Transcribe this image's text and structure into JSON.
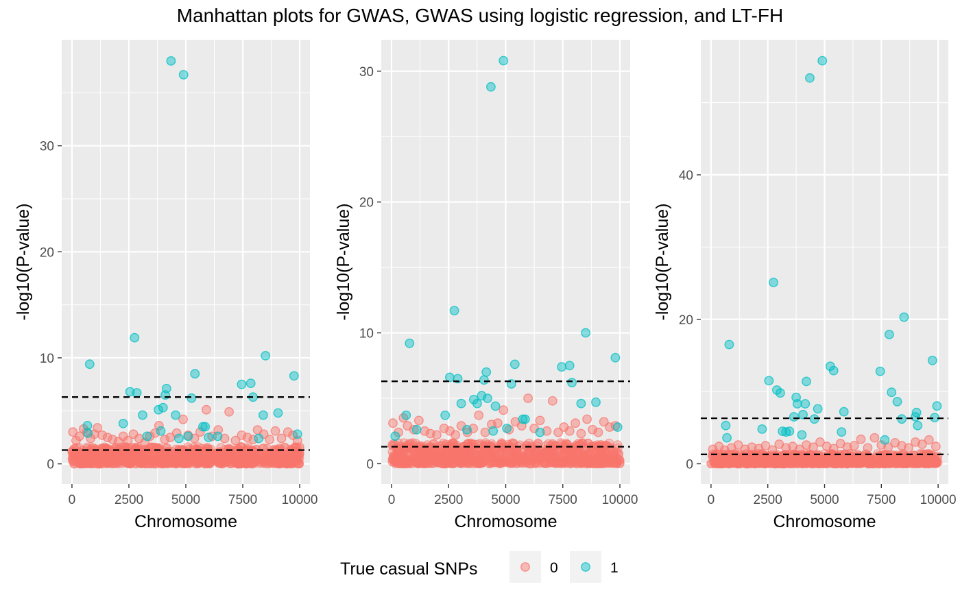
{
  "colors": {
    "panel_bg": "#EBEBEB",
    "grid": "#FFFFFF",
    "series_0": "#F8766D",
    "series_1": "#00BFC4",
    "threshold_line": "#000000"
  },
  "legend": {
    "title": "True casual SNPs",
    "placement": "bottom",
    "entries": [
      "0",
      "1"
    ]
  },
  "chart_data": [
    {
      "type": "scatter",
      "title": "Manhattan plots for GWAS, GWAS using logistic regression, and LT-FH",
      "xlabel": "Chromosome",
      "ylabel": "-log10(P-value)",
      "xlim": [
        -450,
        10450
      ],
      "ylim": [
        -1.9,
        40
      ],
      "x_ticks": [
        0,
        2500,
        5000,
        7500,
        10000
      ],
      "x_tick_labels": [
        "0",
        "2500",
        "5000",
        "7500",
        "10000"
      ],
      "y_ticks": [
        0,
        10,
        20,
        30
      ],
      "y_tick_labels": [
        "0",
        "10",
        "20",
        "30"
      ],
      "thresholds": [
        6.3,
        1.3
      ],
      "background_band": {
        "series": "0",
        "y_max": 1.6,
        "x_range": [
          0,
          10000
        ]
      },
      "series": [
        {
          "name": "0",
          "x": [
            40,
            180,
            330,
            510,
            650,
            820,
            980,
            1120,
            1330,
            1560,
            1780,
            2040,
            2250,
            2460,
            2700,
            2950,
            3200,
            3420,
            3650,
            3820,
            4080,
            4320,
            4600,
            4880,
            5100,
            5380,
            5630,
            5900,
            6150,
            6420,
            6700,
            6900,
            7180,
            7450,
            7700,
            7960,
            8150,
            8420,
            8680,
            8930,
            9200,
            9480,
            9700,
            9900
          ],
          "values": [
            3.0,
            2.2,
            2.6,
            3.3,
            3.0,
            2.4,
            2.8,
            3.4,
            2.7,
            2.5,
            2.3,
            2.1,
            2.6,
            2.2,
            2.8,
            2.4,
            2.0,
            2.6,
            2.9,
            3.6,
            2.3,
            2.5,
            2.9,
            4.2,
            2.7,
            2.4,
            3.0,
            5.1,
            2.6,
            3.2,
            2.4,
            4.9,
            2.2,
            2.7,
            2.5,
            2.3,
            3.2,
            2.8,
            2.3,
            3.1,
            2.4,
            3.0,
            2.7,
            2.2
          ]
        },
        {
          "name": "1",
          "x": [
            680,
            780,
            2250,
            2550,
            2750,
            2850,
            3100,
            3800,
            3900,
            4000,
            4100,
            4150,
            4350,
            4550,
            4700,
            4900,
            5250,
            5400,
            5750,
            5850,
            6400,
            7450,
            7850,
            7950,
            8200,
            8400,
            8500,
            9050,
            9750,
            9900,
            700,
            3300,
            5100,
            6000
          ],
          "values": [
            3.6,
            9.4,
            3.8,
            6.8,
            11.9,
            6.7,
            4.6,
            5.1,
            3.1,
            5.3,
            6.5,
            7.1,
            38.0,
            4.6,
            2.4,
            36.7,
            6.2,
            8.5,
            3.5,
            3.5,
            2.6,
            7.5,
            7.6,
            6.3,
            2.4,
            4.6,
            10.2,
            4.8,
            8.3,
            2.8,
            2.9,
            2.6,
            2.6,
            2.5
          ]
        }
      ]
    },
    {
      "type": "scatter",
      "xlabel": "Chromosome",
      "ylabel": "-log10(P-value)",
      "xlim": [
        -450,
        10450
      ],
      "ylim": [
        -1.55,
        32.4
      ],
      "x_ticks": [
        0,
        2500,
        5000,
        7500,
        10000
      ],
      "x_tick_labels": [
        "0",
        "2500",
        "5000",
        "7500",
        "10000"
      ],
      "y_ticks": [
        0,
        10,
        20,
        30
      ],
      "y_tick_labels": [
        "0",
        "10",
        "20",
        "30"
      ],
      "thresholds": [
        6.3,
        1.3
      ],
      "background_band": {
        "series": "0",
        "y_max": 1.6,
        "x_range": [
          0,
          10000
        ]
      },
      "series": [
        {
          "name": "0",
          "x": [
            60,
            300,
            520,
            700,
            980,
            1200,
            1450,
            1700,
            1980,
            2300,
            2560,
            2800,
            3050,
            3320,
            3580,
            3820,
            4100,
            4380,
            4650,
            4900,
            5150,
            5420,
            5700,
            5980,
            6250,
            6500,
            6800,
            7050,
            7300,
            7550,
            7800,
            8050,
            8300,
            8560,
            8800,
            9050,
            9300,
            9550,
            9800
          ],
          "values": [
            3.1,
            2.4,
            3.5,
            2.9,
            2.6,
            3.3,
            2.5,
            2.3,
            2.2,
            2.7,
            2.5,
            2.2,
            2.9,
            2.4,
            2.7,
            3.7,
            2.4,
            3.0,
            3.1,
            4.1,
            2.6,
            3.2,
            2.9,
            5.0,
            2.7,
            3.3,
            2.5,
            4.8,
            2.4,
            2.8,
            2.5,
            3.1,
            2.3,
            3.4,
            2.6,
            2.4,
            3.2,
            2.8,
            2.9
          ]
        },
        {
          "name": "1",
          "x": [
            160,
            640,
            790,
            2350,
            2550,
            2750,
            2900,
            3050,
            3600,
            3750,
            3950,
            4050,
            4150,
            4200,
            4350,
            4450,
            4550,
            4900,
            5250,
            5400,
            5750,
            5850,
            7450,
            7800,
            7900,
            8300,
            8500,
            8950,
            9800,
            9900,
            1100,
            3300,
            5050,
            6500
          ],
          "values": [
            2.1,
            3.7,
            9.2,
            3.7,
            6.6,
            11.7,
            6.5,
            4.6,
            4.9,
            4.6,
            5.2,
            6.4,
            7.0,
            5.0,
            28.8,
            2.5,
            4.4,
            30.8,
            6.1,
            7.6,
            3.4,
            3.4,
            7.4,
            7.5,
            6.2,
            4.6,
            10.0,
            4.7,
            8.1,
            2.8,
            2.6,
            2.6,
            2.7,
            2.4
          ]
        }
      ]
    },
    {
      "type": "scatter",
      "xlabel": "Chromosome",
      "ylabel": "-log10(P-value)",
      "xlim": [
        -450,
        10450
      ],
      "ylim": [
        -2.8,
        58.7
      ],
      "x_ticks": [
        0,
        2500,
        5000,
        7500,
        10000
      ],
      "x_tick_labels": [
        "0",
        "2500",
        "5000",
        "7500",
        "10000"
      ],
      "y_ticks": [
        0,
        20,
        40
      ],
      "y_tick_labels": [
        "0",
        "20",
        "40"
      ],
      "thresholds": [
        6.3,
        1.3
      ],
      "background_band": {
        "series": "0",
        "y_max": 1.4,
        "x_range": [
          0,
          10000
        ]
      },
      "series": [
        {
          "name": "0",
          "x": [
            80,
            350,
            600,
            900,
            1200,
            1500,
            1800,
            2100,
            2400,
            2700,
            3000,
            3300,
            3600,
            3900,
            4200,
            4500,
            4800,
            5100,
            5400,
            5700,
            6000,
            6300,
            6600,
            6900,
            7200,
            7500,
            7800,
            8100,
            8400,
            8700,
            9000,
            9300,
            9600,
            9900
          ],
          "values": [
            2.0,
            2.4,
            1.9,
            2.2,
            2.6,
            2.0,
            2.3,
            2.1,
            2.5,
            1.9,
            2.7,
            2.2,
            2.4,
            2.0,
            2.6,
            2.3,
            3.0,
            2.4,
            2.1,
            2.8,
            2.3,
            2.5,
            3.4,
            2.2,
            3.6,
            2.6,
            2.3,
            2.9,
            2.5,
            2.2,
            3.0,
            2.7,
            3.3,
            2.4
          ]
        },
        {
          "name": "1",
          "x": [
            650,
            700,
            800,
            2250,
            2550,
            2750,
            2900,
            3050,
            3150,
            3300,
            3450,
            3650,
            3750,
            3800,
            4000,
            4050,
            4150,
            4200,
            4350,
            4550,
            4700,
            4900,
            5250,
            5400,
            5750,
            5850,
            7450,
            7650,
            7850,
            7950,
            8200,
            8400,
            8500,
            9000,
            9050,
            9100,
            9750,
            9850,
            9950
          ],
          "values": [
            5.3,
            3.6,
            16.5,
            4.8,
            11.5,
            25.1,
            10.2,
            9.8,
            4.5,
            4.4,
            4.5,
            6.5,
            9.2,
            8.3,
            4.0,
            6.8,
            8.3,
            11.4,
            53.4,
            6.2,
            7.6,
            55.8,
            13.5,
            12.9,
            4.4,
            7.2,
            12.8,
            3.3,
            17.9,
            9.9,
            8.6,
            6.2,
            20.3,
            6.5,
            7.1,
            5.3,
            14.3,
            6.4,
            8.0
          ]
        }
      ]
    }
  ]
}
